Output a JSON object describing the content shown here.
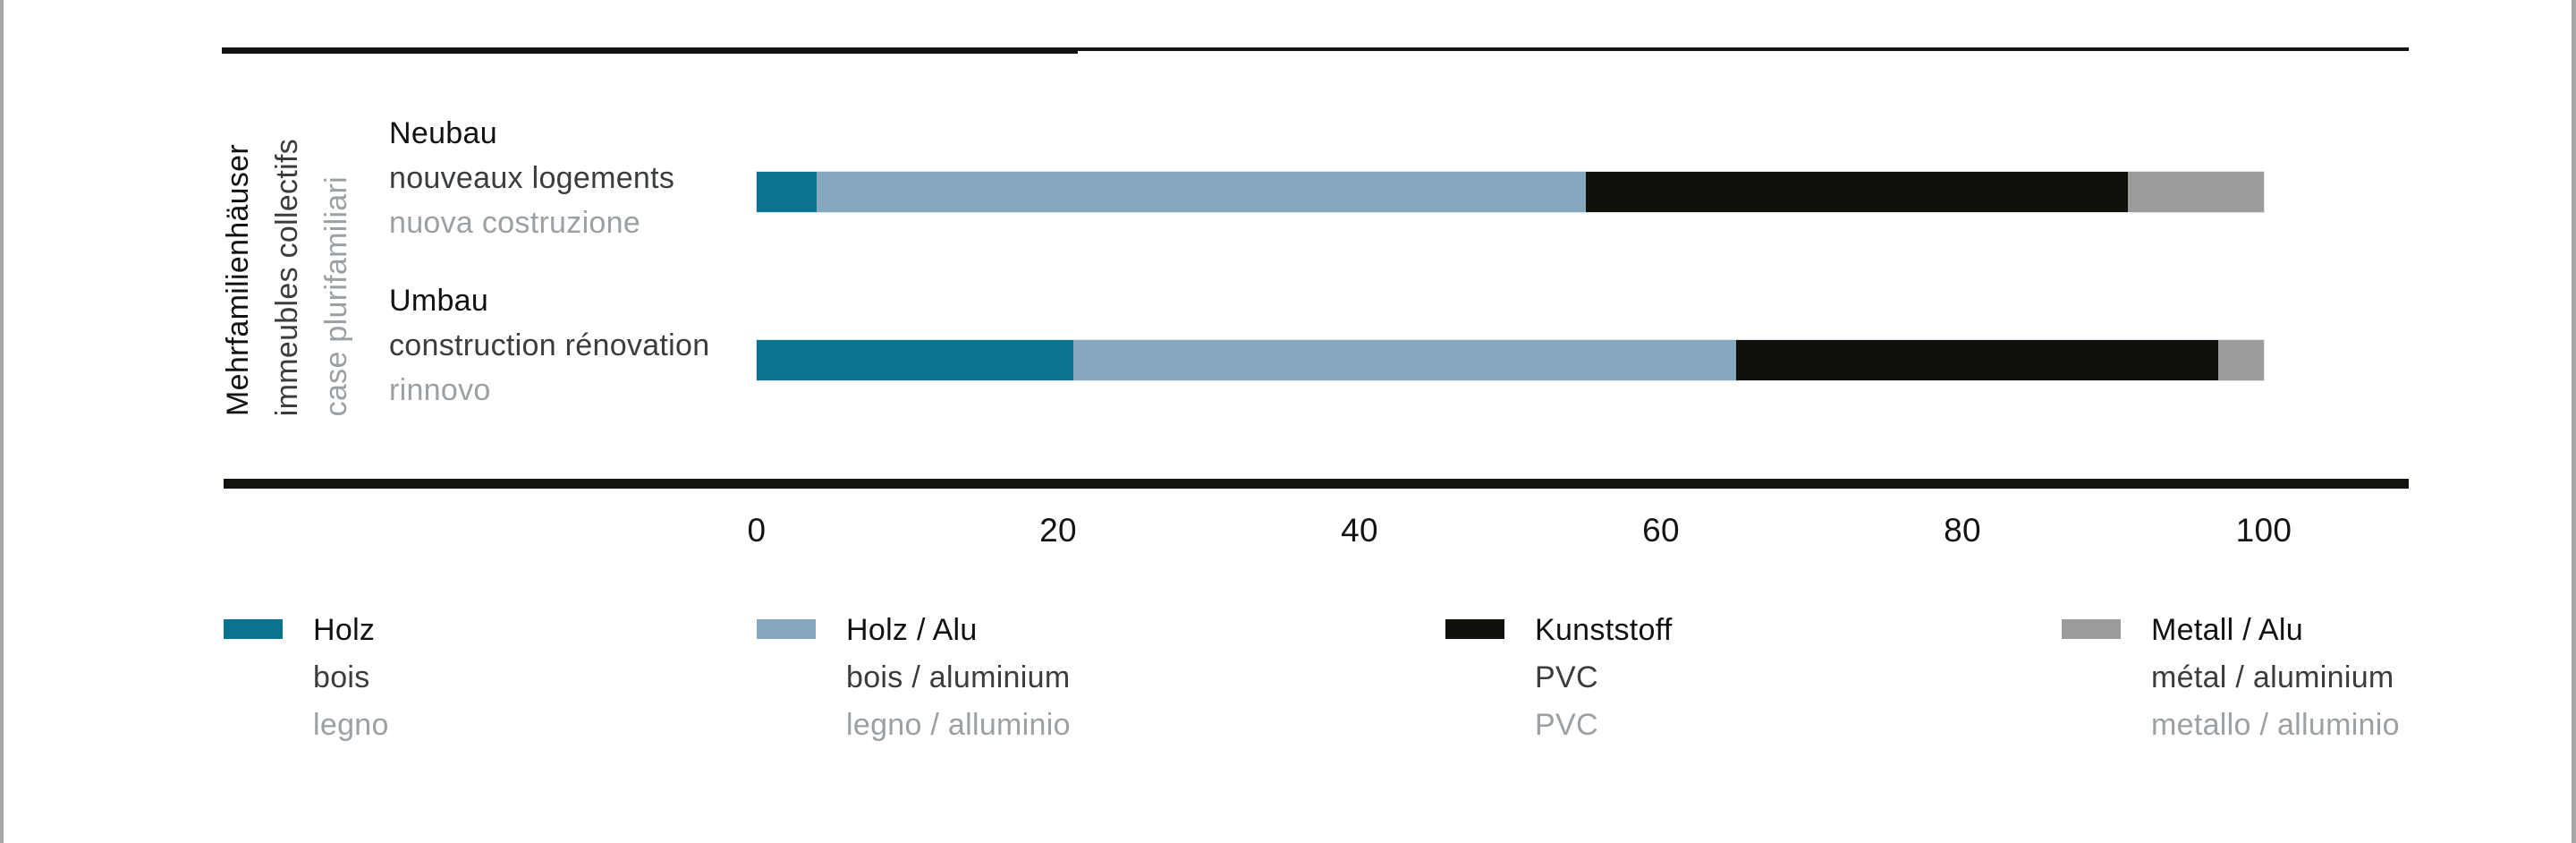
{
  "page": {
    "background": "#ffffff",
    "edge_border_color": "#a6a6a6",
    "rule_color": "#15130f"
  },
  "colors": {
    "text_de": "#111111",
    "text_fr": "#3a3d40",
    "text_it": "#9ba0a4",
    "tick_text": "#15130f"
  },
  "chart_data": {
    "type": "bar",
    "orientation": "horizontal",
    "stacked": true,
    "values_unit": "percent",
    "xlim": [
      0,
      100
    ],
    "x_ticks": [
      "0",
      "20",
      "40",
      "60",
      "80",
      "100"
    ],
    "grid": false,
    "legend_position": "bottom",
    "group_label": {
      "de": "Mehrfamilienhäuser",
      "fr": "immeubles collectifs",
      "it": "case plurifamiliari"
    },
    "categories": [
      {
        "id": "neubau",
        "de": "Neubau",
        "fr": "nouveaux logements",
        "it": "nuova costruzione"
      },
      {
        "id": "umbau",
        "de": "Umbau",
        "fr": "construction rénovation",
        "it": "rinnovo"
      }
    ],
    "series": [
      {
        "id": "holz",
        "de": "Holz",
        "fr": "bois",
        "it": "legno",
        "color": "#0a7390",
        "values": [
          4,
          21
        ]
      },
      {
        "id": "holz-alu",
        "de": "Holz / Alu",
        "fr": "bois / aluminium",
        "it": "legno / alluminio",
        "color": "#85a8be",
        "values": [
          51,
          44
        ]
      },
      {
        "id": "kunststoff",
        "de": "Kunststoff",
        "fr": "PVC",
        "it": "PVC",
        "color": "#12100b",
        "values": [
          36,
          32
        ]
      },
      {
        "id": "metall-alu",
        "de": "Metall / Alu",
        "fr": "métal / aluminium",
        "it": "metallo / alluminio",
        "color": "#9c9c9c",
        "values": [
          9,
          3
        ]
      }
    ]
  },
  "layout_values": {
    "row_label_tops": [
      124,
      311
    ],
    "bar_tops": [
      192,
      380
    ],
    "legend_col_lefts": [
      250,
      846,
      1616,
      2305
    ]
  }
}
